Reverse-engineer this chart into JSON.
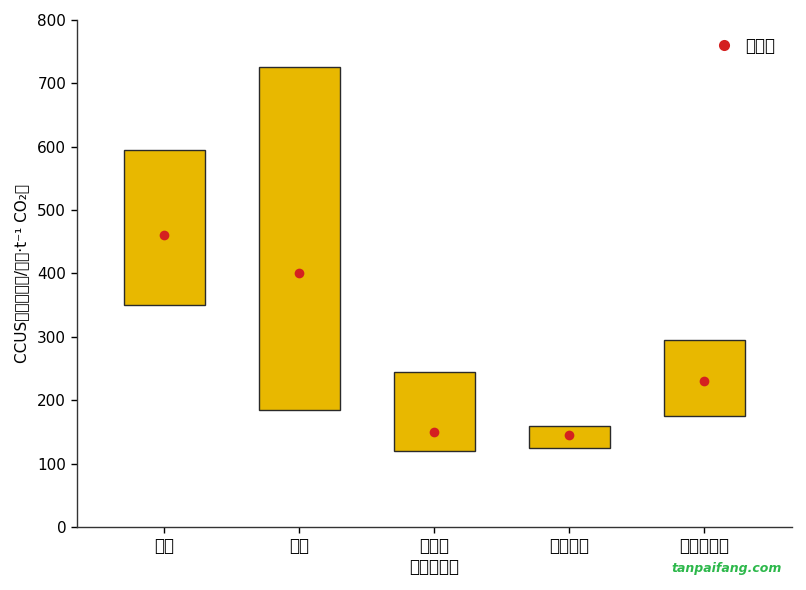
{
  "categories": [
    "电力",
    "水泥",
    "煤化工",
    "石油化工",
    "天然气处理"
  ],
  "xlabel": "主要排放源",
  "ylabel_line1": "CCUS净减排成本/（元·t",
  "ylabel_line2": " CO₂）",
  "ylim": [
    0,
    800
  ],
  "yticks": [
    0,
    100,
    200,
    300,
    400,
    500,
    600,
    700,
    800
  ],
  "box_bottoms": [
    350,
    185,
    120,
    125,
    175
  ],
  "box_tops": [
    595,
    725,
    245,
    160,
    295
  ],
  "dot_values": [
    460,
    400,
    150,
    145,
    230
  ],
  "bar_color": "#E8B800",
  "bar_edgecolor": "#2a2a2a",
  "dot_color": "#D42020",
  "background_color": "#ffffff",
  "legend_label": "平均值",
  "bar_width": 0.6,
  "figsize": [
    8.06,
    5.9
  ],
  "dpi": 100
}
